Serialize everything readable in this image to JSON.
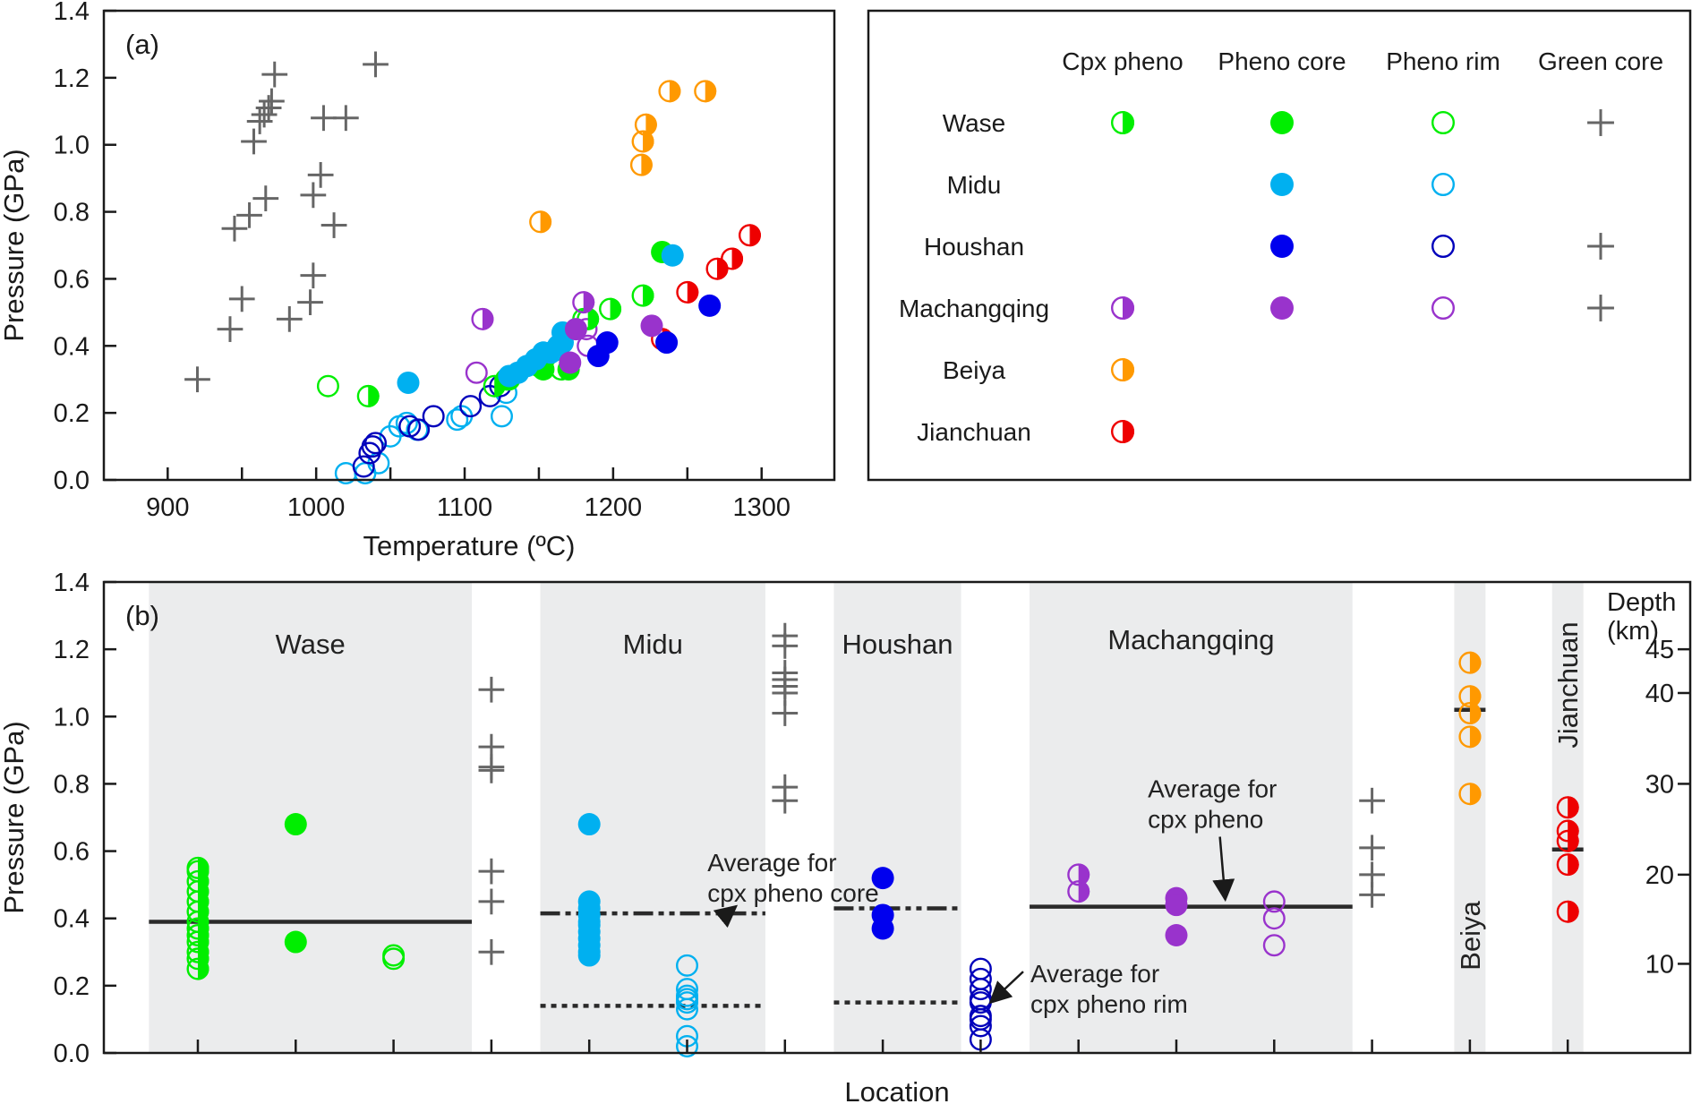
{
  "colors": {
    "Wase": "#00ee00",
    "Midu": "#00b0f0",
    "Houshan_core": "#0000ee",
    "Houshan_rim": "#0000bb",
    "Machangqing": "#9933cc",
    "Beiya": "#ff9900",
    "Jianchuan": "#ee0000",
    "green_core": "#666666",
    "band": "#ebeced",
    "axis": "#1a1a1a",
    "avg_line": "#2a2a2a"
  },
  "chart_data": [
    {
      "id": "a",
      "type": "scatter",
      "panel_label": "(a)",
      "xlabel": "Temperature (ºC)",
      "ylabel": "Pressure (GPa)",
      "xlim": [
        857,
        1349
      ],
      "ylim": [
        0,
        1.4
      ],
      "xticks": [
        900,
        1000,
        1100,
        1200,
        1300
      ],
      "xticks_minor": [
        950,
        1050,
        1150,
        1250
      ],
      "yticks": [
        0.0,
        0.2,
        0.4,
        0.6,
        0.8,
        1.0,
        1.2,
        1.4
      ],
      "ytick_labels": [
        "0.0",
        "0.2",
        "0.4",
        "0.6",
        "0.8",
        "1.0",
        "1.2",
        "1.4"
      ],
      "grid": false,
      "series": [
        {
          "name": "Green core",
          "location": "all",
          "marker": "plus",
          "color": "#666666",
          "points": [
            [
              920,
              0.3
            ],
            [
              942,
              0.45
            ],
            [
              950,
              0.54
            ],
            [
              945,
              0.75
            ],
            [
              955,
              0.79
            ],
            [
              966,
              0.84
            ],
            [
              958,
              1.01
            ],
            [
              962,
              1.07
            ],
            [
              965,
              1.09
            ],
            [
              968,
              1.11
            ],
            [
              970,
              1.13
            ],
            [
              972,
              1.21
            ],
            [
              982,
              0.48
            ],
            [
              996,
              0.53
            ],
            [
              998,
              0.61
            ],
            [
              998,
              0.85
            ],
            [
              1003,
              0.91
            ],
            [
              1012,
              0.76
            ],
            [
              1005,
              1.08
            ],
            [
              1020,
              1.08
            ],
            [
              1040,
              1.24
            ]
          ]
        },
        {
          "name": "Wase Cpx pheno",
          "location": "Wase",
          "marker": "half",
          "color": "#00ee00",
          "points": [
            [
              1035,
              0.25
            ],
            [
              1220,
              0.55
            ],
            [
              1198,
              0.51
            ],
            [
              1183,
              0.48
            ],
            [
              1120,
              0.28
            ],
            [
              1128,
              0.3
            ],
            [
              1165,
              0.33
            ]
          ]
        },
        {
          "name": "Wase Pheno core",
          "location": "Wase",
          "marker": "filled",
          "color": "#00ee00",
          "points": [
            [
              1233,
              0.68
            ],
            [
              1170,
              0.33
            ],
            [
              1153,
              0.33
            ],
            [
              1130,
              0.3
            ]
          ]
        },
        {
          "name": "Wase Pheno rim",
          "location": "Wase",
          "marker": "open",
          "color": "#00ee00",
          "points": [
            [
              1008,
              0.28
            ],
            [
              1150,
              0.34
            ],
            [
              1180,
              0.48
            ]
          ]
        },
        {
          "name": "Midu Pheno core",
          "location": "Midu",
          "marker": "filled",
          "color": "#00b0f0",
          "points": [
            [
              1062,
              0.29
            ],
            [
              1130,
              0.31
            ],
            [
              1136,
              0.32
            ],
            [
              1142,
              0.34
            ],
            [
              1148,
              0.36
            ],
            [
              1153,
              0.38
            ],
            [
              1158,
              0.38
            ],
            [
              1163,
              0.4
            ],
            [
              1166,
              0.41
            ],
            [
              1166,
              0.44
            ],
            [
              1240,
              0.67
            ]
          ]
        },
        {
          "name": "Midu Pheno rim",
          "location": "Midu",
          "marker": "open",
          "color": "#00b0f0",
          "points": [
            [
              1020,
              0.02
            ],
            [
              1033,
              0.02
            ],
            [
              1042,
              0.05
            ],
            [
              1050,
              0.13
            ],
            [
              1056,
              0.16
            ],
            [
              1061,
              0.17
            ],
            [
              1068,
              0.15
            ],
            [
              1095,
              0.18
            ],
            [
              1098,
              0.19
            ],
            [
              1125,
              0.19
            ],
            [
              1128,
              0.26
            ]
          ]
        },
        {
          "name": "Houshan Pheno core",
          "location": "Houshan",
          "marker": "filled",
          "color": "#0000ee",
          "points": [
            [
              1190,
              0.37
            ],
            [
              1196,
              0.41
            ],
            [
              1236,
              0.41
            ],
            [
              1265,
              0.52
            ]
          ]
        },
        {
          "name": "Houshan Pheno rim",
          "location": "Houshan",
          "marker": "open",
          "color": "#0000bb",
          "points": [
            [
              1032,
              0.04
            ],
            [
              1036,
              0.08
            ],
            [
              1038,
              0.1
            ],
            [
              1040,
              0.11
            ],
            [
              1063,
              0.16
            ],
            [
              1069,
              0.15
            ],
            [
              1079,
              0.19
            ],
            [
              1104,
              0.22
            ],
            [
              1117,
              0.25
            ],
            [
              1124,
              0.28
            ]
          ]
        },
        {
          "name": "Machangqing Cpx pheno",
          "location": "Machangqing",
          "marker": "half",
          "color": "#9933cc",
          "points": [
            [
              1112,
              0.48
            ],
            [
              1180,
              0.53
            ]
          ]
        },
        {
          "name": "Machangqing Pheno core",
          "location": "Machangqing",
          "marker": "filled",
          "color": "#9933cc",
          "points": [
            [
              1175,
              0.45
            ],
            [
              1171,
              0.35
            ],
            [
              1226,
              0.46
            ]
          ]
        },
        {
          "name": "Machangqing Pheno rim",
          "location": "Machangqing",
          "marker": "open",
          "color": "#9933cc",
          "points": [
            [
              1108,
              0.32
            ],
            [
              1183,
              0.4
            ],
            [
              1182,
              0.45
            ]
          ]
        },
        {
          "name": "Beiya Cpx pheno",
          "location": "Beiya",
          "marker": "half",
          "color": "#ff9900",
          "points": [
            [
              1151,
              0.77
            ],
            [
              1219,
              0.94
            ],
            [
              1220,
              1.01
            ],
            [
              1222,
              1.06
            ],
            [
              1238,
              1.16
            ],
            [
              1262,
              1.16
            ]
          ]
        },
        {
          "name": "Jianchuan Cpx pheno",
          "location": "Jianchuan",
          "marker": "half",
          "color": "#ee0000",
          "points": [
            [
              1233,
              0.42
            ],
            [
              1250,
              0.56
            ],
            [
              1270,
              0.63
            ],
            [
              1280,
              0.66
            ],
            [
              1292,
              0.73
            ]
          ]
        }
      ]
    },
    {
      "id": "b",
      "type": "scatter",
      "panel_label": "(b)",
      "xlabel": "Location",
      "ylabel": "Pressure (GPa)",
      "ylim": [
        0,
        1.4
      ],
      "yticks": [
        0.0,
        0.2,
        0.4,
        0.6,
        0.8,
        1.0,
        1.2,
        1.4
      ],
      "ytick_labels": [
        "0.0",
        "0.2",
        "0.4",
        "0.6",
        "0.8",
        "1.0",
        "1.2",
        "1.4"
      ],
      "right_axis": {
        "title_line1": "Depth",
        "title_line2": "(km)",
        "ticks_km": [
          10,
          20,
          30,
          40,
          45
        ],
        "tick_pressure_gpa": [
          0.265,
          0.53,
          0.8,
          1.07,
          1.2
        ]
      },
      "x_slots": 15,
      "grid": false,
      "bands": [
        {
          "name": "Wase",
          "label": "Wase",
          "slot_range": [
            0.5,
            3.8
          ],
          "label_orientation": "horizontal"
        },
        {
          "name": "Midu",
          "label": "Midu",
          "slot_range": [
            4.5,
            6.8
          ],
          "label_orientation": "horizontal"
        },
        {
          "name": "Houshan",
          "label": "Houshan",
          "slot_range": [
            7.5,
            8.8
          ],
          "label_orientation": "horizontal"
        },
        {
          "name": "Machangqing",
          "label": "Machangqing",
          "slot_range": [
            9.5,
            12.8
          ],
          "label_orientation": "horizontal"
        },
        {
          "name": "Beiya",
          "label": "Beiya",
          "slot_range": [
            13.84,
            14.16
          ],
          "label_orientation": "vertical"
        },
        {
          "name": "Jianchuan",
          "label": "Jianchuan",
          "slot_range": [
            14.84,
            15.16
          ],
          "label_orientation": "vertical"
        }
      ],
      "series": [
        {
          "name": "Wase Cpx pheno",
          "marker": "half",
          "color": "#00ee00",
          "slot": 1,
          "values": [
            0.25,
            0.28,
            0.3,
            0.33,
            0.35,
            0.37,
            0.39,
            0.42,
            0.45,
            0.48,
            0.51,
            0.54,
            0.55
          ]
        },
        {
          "name": "Wase Pheno core",
          "marker": "filled",
          "color": "#00ee00",
          "slot": 2,
          "values": [
            0.68,
            0.33
          ]
        },
        {
          "name": "Wase Pheno rim",
          "marker": "open",
          "color": "#00ee00",
          "slot": 3,
          "values": [
            0.28,
            0.29
          ]
        },
        {
          "name": "Wase Green core",
          "marker": "plus",
          "color": "#666666",
          "slot": 4,
          "values": [
            1.08,
            0.91,
            0.85,
            0.84,
            0.54,
            0.45,
            0.3
          ]
        },
        {
          "name": "Midu Pheno core",
          "marker": "filled",
          "color": "#00b0f0",
          "slot": 5,
          "values": [
            0.68,
            0.45,
            0.43,
            0.41,
            0.39,
            0.38,
            0.36,
            0.34,
            0.32,
            0.3,
            0.29
          ]
        },
        {
          "name": "Midu Pheno rim",
          "marker": "open",
          "color": "#00b0f0",
          "slot": 6,
          "values": [
            0.26,
            0.19,
            0.17,
            0.16,
            0.15,
            0.13,
            0.05,
            0.02
          ]
        },
        {
          "name": "Midu Green core",
          "marker": "plus",
          "color": "#666666",
          "slot": 7,
          "values": [
            1.24,
            1.21,
            1.13,
            1.11,
            1.09,
            1.07,
            1.01,
            0.79,
            0.75
          ]
        },
        {
          "name": "Houshan Pheno core",
          "marker": "filled",
          "color": "#0000ee",
          "slot": 8,
          "values": [
            0.52,
            0.41,
            0.37
          ]
        },
        {
          "name": "Houshan Pheno rim",
          "marker": "open",
          "color": "#0000bb",
          "slot": 9,
          "values": [
            0.25,
            0.22,
            0.19,
            0.16,
            0.15,
            0.11,
            0.1,
            0.08,
            0.04
          ]
        },
        {
          "name": "Machangqing Cpx pheno",
          "marker": "half",
          "color": "#9933cc",
          "slot": 10,
          "values": [
            0.53,
            0.48
          ]
        },
        {
          "name": "Machangqing Pheno core",
          "marker": "filled",
          "color": "#9933cc",
          "slot": 11,
          "values": [
            0.46,
            0.44,
            0.35
          ]
        },
        {
          "name": "Machangqing Pheno rim",
          "marker": "open",
          "color": "#9933cc",
          "slot": 12,
          "values": [
            0.45,
            0.4,
            0.32
          ]
        },
        {
          "name": "Machangqing Green core",
          "marker": "plus",
          "color": "#666666",
          "slot": 13,
          "values": [
            0.75,
            0.61,
            0.53,
            0.47
          ]
        },
        {
          "name": "Beiya Cpx pheno",
          "marker": "half",
          "color": "#ff9900",
          "slot": 14,
          "values": [
            1.16,
            1.06,
            1.01,
            0.94,
            0.77
          ]
        },
        {
          "name": "Jianchuan Cpx pheno",
          "marker": "half",
          "color": "#ee0000",
          "slot": 15,
          "values": [
            0.73,
            0.66,
            0.63,
            0.56,
            0.42
          ]
        }
      ],
      "averages": [
        {
          "name": "Wase avg cpx pheno",
          "style": "solid",
          "value": 0.39,
          "slot_range": [
            0.5,
            3.8
          ]
        },
        {
          "name": "Midu avg cpx pheno core",
          "style": "dashdotdot",
          "value": 0.415,
          "slot_range": [
            4.5,
            6.8
          ]
        },
        {
          "name": "Midu avg cpx pheno rim",
          "style": "dotted",
          "value": 0.14,
          "slot_range": [
            4.5,
            6.8
          ]
        },
        {
          "name": "Houshan avg cpx pheno core",
          "style": "dashdotdot",
          "value": 0.43,
          "slot_range": [
            7.5,
            8.8
          ]
        },
        {
          "name": "Houshan avg cpx pheno rim",
          "style": "dotted",
          "value": 0.15,
          "slot_range": [
            7.5,
            8.8
          ]
        },
        {
          "name": "Machangqing avg cpx pheno",
          "style": "solid",
          "value": 0.435,
          "slot_range": [
            9.5,
            12.8
          ]
        },
        {
          "name": "Beiya avg",
          "style": "solid",
          "value": 1.02,
          "slot_range": [
            13.84,
            14.16
          ]
        },
        {
          "name": "Jianchuan avg",
          "style": "solid",
          "value": 0.605,
          "slot_range": [
            14.84,
            15.16
          ]
        }
      ],
      "annotations": [
        {
          "name": "annot-pheno-core",
          "line1": "Average for",
          "line2": "cpx pheno core",
          "anchor_slot": 6.3,
          "anchor_value": 0.54,
          "arrow_to_slot": 6.5,
          "arrow_to_value": 0.42
        },
        {
          "name": "annot-pheno",
          "line1": "Average for",
          "line2": "cpx pheno",
          "anchor_slot": 10.8,
          "anchor_value": 0.76,
          "arrow_to_slot": 11.5,
          "arrow_to_value": 0.44
        },
        {
          "name": "annot-pheno-rim",
          "line1": "Average for",
          "line2": "cpx pheno rim",
          "anchor_slot": 9.6,
          "anchor_value": 0.21,
          "arrow_to_slot": 9.1,
          "arrow_to_value": 0.15
        }
      ]
    }
  ],
  "legend": {
    "columns": [
      "Cpx pheno",
      "Pheno core",
      "Pheno rim",
      "Green core"
    ],
    "rows": [
      {
        "label": "Wase",
        "color": "#00ee00",
        "has": [
          true,
          true,
          true,
          true
        ]
      },
      {
        "label": "Midu",
        "color": "#00b0f0",
        "has": [
          false,
          true,
          true,
          false
        ]
      },
      {
        "label": "Houshan",
        "color": "#0000ee",
        "rim_color": "#0000bb",
        "has": [
          false,
          true,
          true,
          true
        ]
      },
      {
        "label": "Machangqing",
        "color": "#9933cc",
        "has": [
          true,
          true,
          true,
          true
        ]
      },
      {
        "label": "Beiya",
        "color": "#ff9900",
        "has": [
          true,
          false,
          false,
          false
        ]
      },
      {
        "label": "Jianchuan",
        "color": "#ee0000",
        "has": [
          true,
          false,
          false,
          false
        ]
      }
    ]
  }
}
